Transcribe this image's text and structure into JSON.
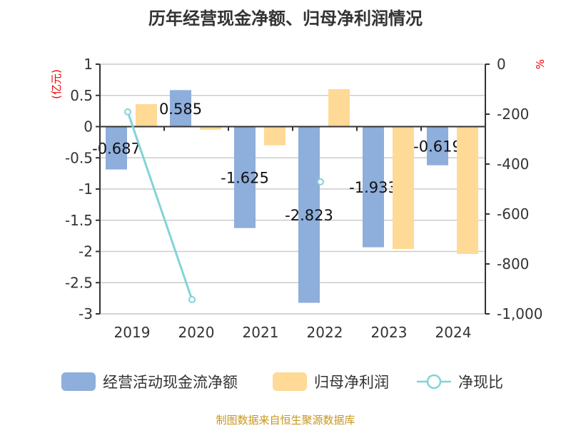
{
  "chart_data": {
    "type": "bar",
    "title": "历年经营现金净额、归母净利润情况",
    "categories": [
      "2019",
      "2020",
      "2021",
      "2022",
      "2023",
      "2024"
    ],
    "left_axis": {
      "unit": "(亿元)",
      "range": [
        -3,
        1
      ],
      "ticks": [
        "1",
        "0.5",
        "0",
        "-0.5",
        "-1",
        "-1.5",
        "-2",
        "-2.5",
        "-3"
      ],
      "tick_values": [
        1,
        0.5,
        0,
        -0.5,
        -1,
        -1.5,
        -2,
        -2.5,
        -3
      ]
    },
    "right_axis": {
      "unit": "%",
      "range": [
        -1000,
        0
      ],
      "ticks": [
        "0",
        "-200",
        "-400",
        "-600",
        "-800",
        "-1,000"
      ],
      "tick_values": [
        0,
        -200,
        -400,
        -600,
        -800,
        -1000
      ]
    },
    "series": [
      {
        "name": "经营活动现金流净额",
        "type": "bar",
        "axis": "left",
        "color": "#8eaedb",
        "values": [
          -0.687,
          0.585,
          -1.625,
          -2.823,
          -1.933,
          -0.619
        ],
        "labels": [
          "-0.687",
          "0.585",
          "-1.625",
          "-2.823",
          "-1.933",
          "-0.619"
        ]
      },
      {
        "name": "归母净利润",
        "type": "bar",
        "axis": "left",
        "color": "#ffd996",
        "values": [
          0.36,
          -0.05,
          -0.3,
          0.6,
          -1.96,
          -2.04
        ]
      },
      {
        "name": "净现比",
        "type": "line",
        "axis": "right",
        "color": "#82d3d8",
        "values": [
          -191,
          -943,
          null,
          -471,
          null,
          null
        ]
      }
    ],
    "grid": true,
    "legend": "bottom"
  },
  "source": "制图数据来自恒生聚源数据库"
}
